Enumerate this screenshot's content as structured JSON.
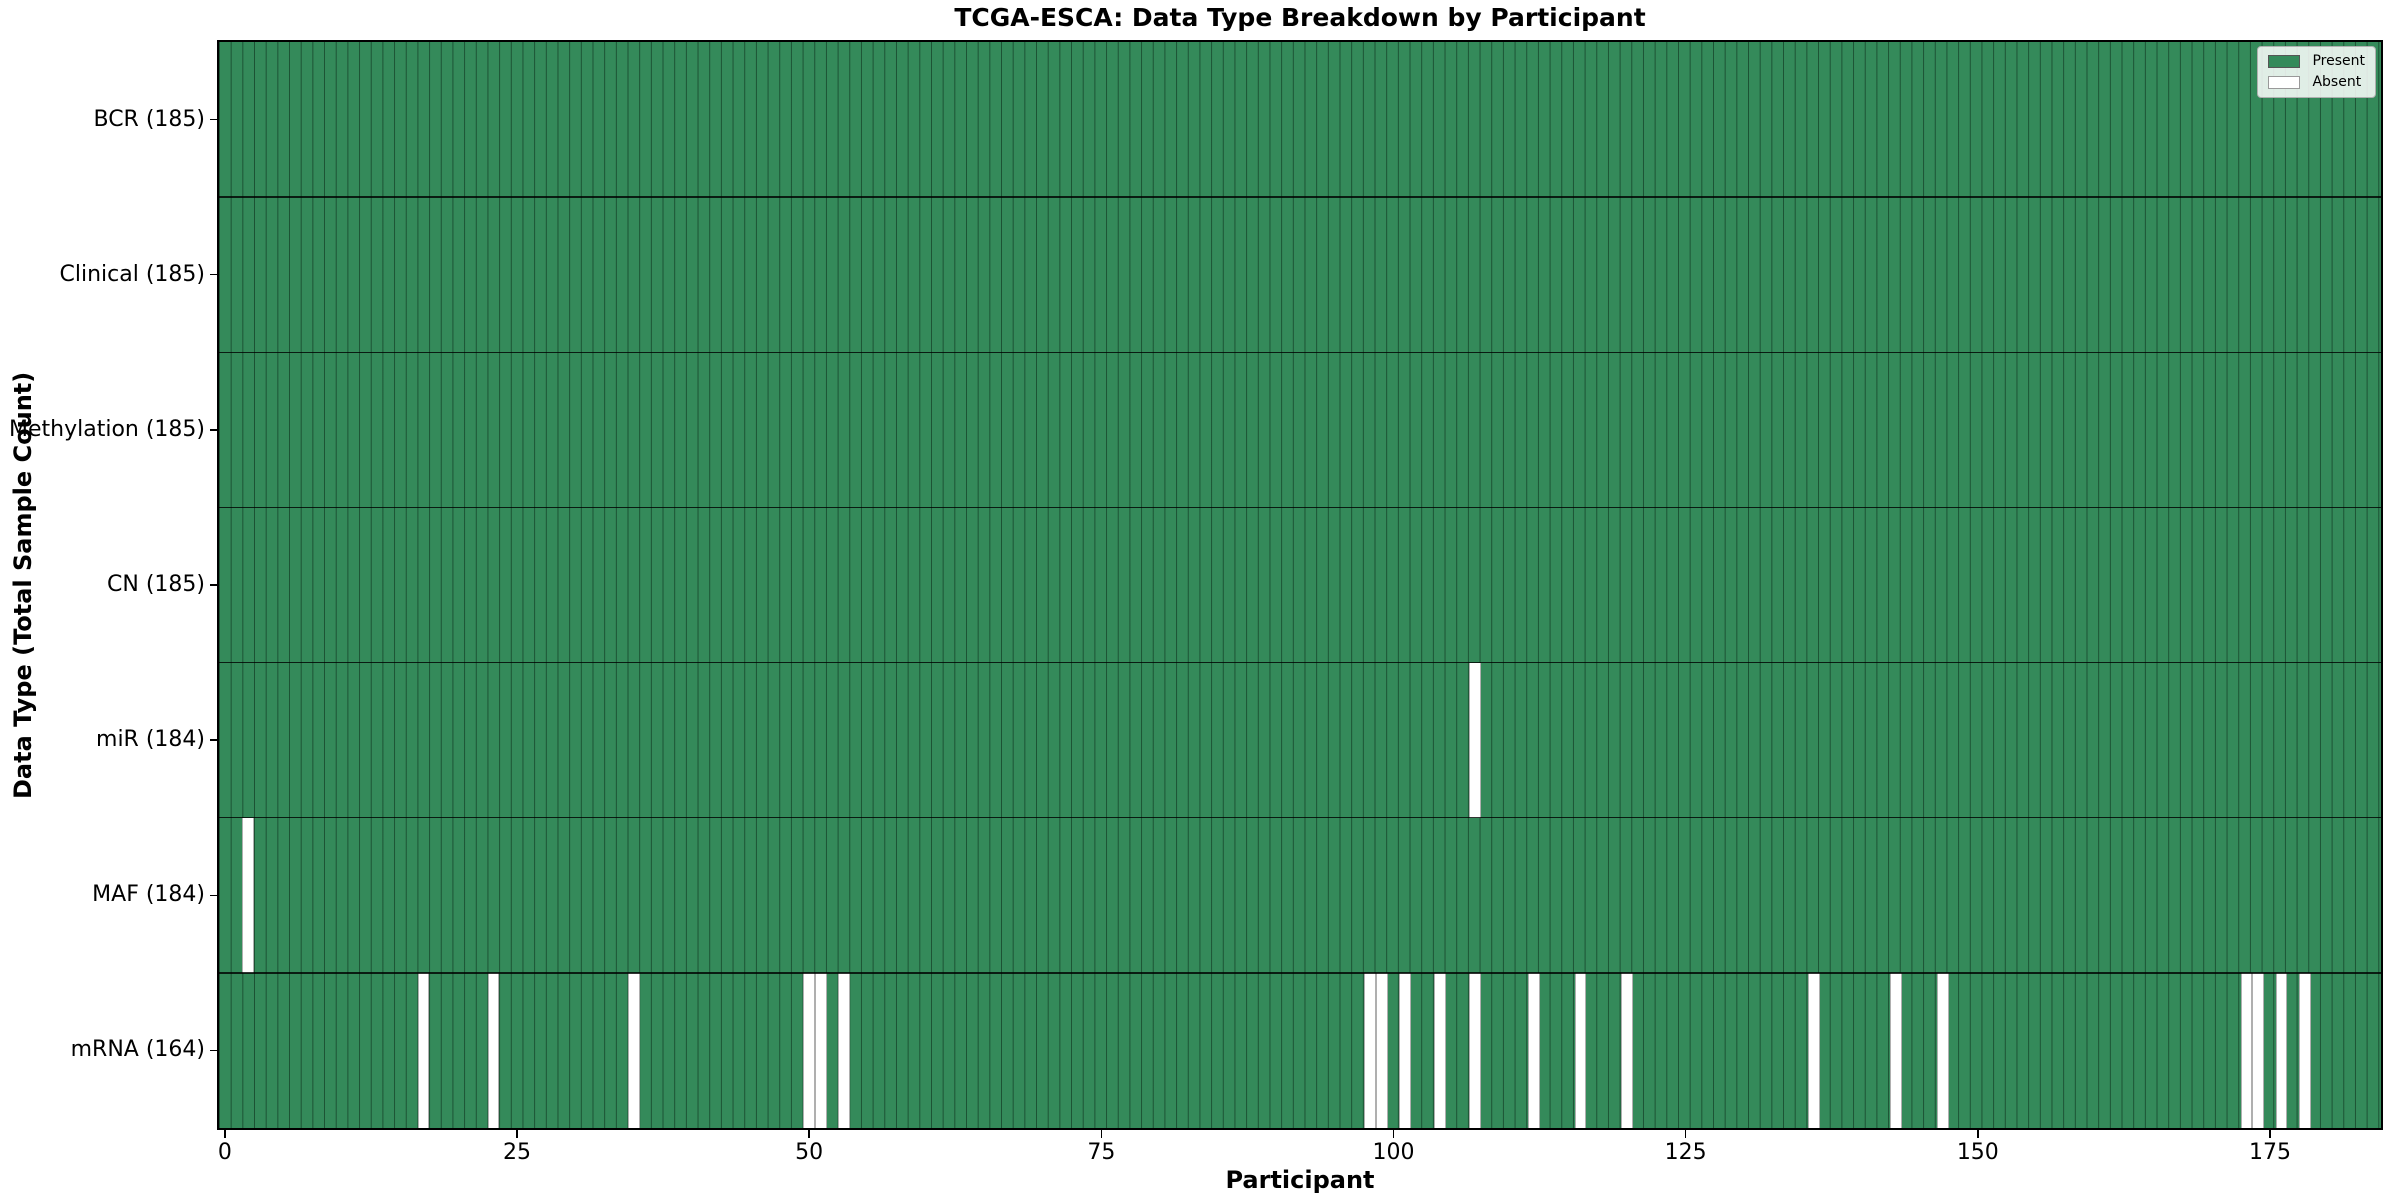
{
  "chart_data": {
    "type": "heatmap",
    "title": "TCGA-ESCA: Data Type Breakdown by Participant",
    "xlabel": "Participant",
    "ylabel": "Data Type (Total Sample Count)",
    "x_axis": {
      "ticks": [
        0,
        25,
        50,
        75,
        100,
        125,
        150,
        175
      ],
      "n_participants": 185,
      "range": [
        0,
        185
      ]
    },
    "legend": {
      "position": "upper right",
      "entries": [
        {
          "label": "Present",
          "color": "#348a5a"
        },
        {
          "label": "Absent",
          "color": "#ffffff"
        }
      ]
    },
    "grid": "cell-edges-on",
    "rows": [
      {
        "label": "BCR (185)",
        "data_type": "BCR",
        "present_count": 185,
        "absent_participants": []
      },
      {
        "label": "Clinical (185)",
        "data_type": "Clinical",
        "present_count": 185,
        "absent_participants": []
      },
      {
        "label": "Methylation (185)",
        "data_type": "Methylation",
        "present_count": 185,
        "absent_participants": []
      },
      {
        "label": "CN (185)",
        "data_type": "CN",
        "present_count": 185,
        "absent_participants": []
      },
      {
        "label": "miR (184)",
        "data_type": "miR",
        "present_count": 184,
        "absent_participants": [
          107
        ]
      },
      {
        "label": "MAF (184)",
        "data_type": "MAF",
        "present_count": 184,
        "absent_participants": [
          2
        ]
      },
      {
        "label": "mRNA (164)",
        "data_type": "mRNA",
        "present_count": 164,
        "absent_participants": [
          17,
          23,
          35,
          50,
          51,
          53,
          98,
          99,
          101,
          104,
          107,
          112,
          116,
          120,
          136,
          143,
          147,
          173,
          174,
          176,
          178
        ]
      }
    ],
    "colors": {
      "present": "#348a5a",
      "absent": "#ffffff",
      "cell_edge": "rgba(12,44,26,0.6)",
      "absent_cell_edge": "rgba(110,110,110,0.55)",
      "row_divider": "rgba(0,0,0,0.8)",
      "plot_border": "#000000",
      "legend_bg": "rgba(255,255,255,0.85)",
      "legend_border": "#b0b0b0",
      "text": "#000000"
    }
  }
}
